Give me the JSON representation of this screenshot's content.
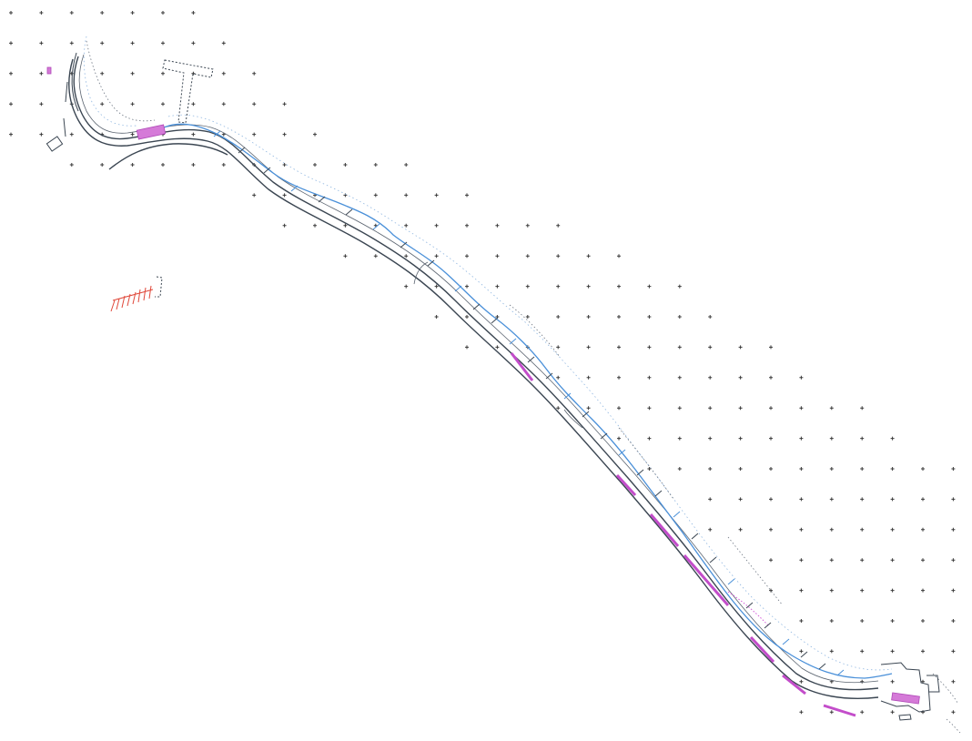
{
  "drawing": {
    "background": "#ffffff",
    "colors": {
      "road": "#3b4652",
      "water": "#4a90d9",
      "highlight": "#c34dca",
      "marker": "#e0483a",
      "grid": "#3a3a3a"
    },
    "elements": [
      "survey-grid",
      "road-alignment",
      "watercourse",
      "highlighted-segments",
      "structures",
      "isolated-marker"
    ]
  }
}
